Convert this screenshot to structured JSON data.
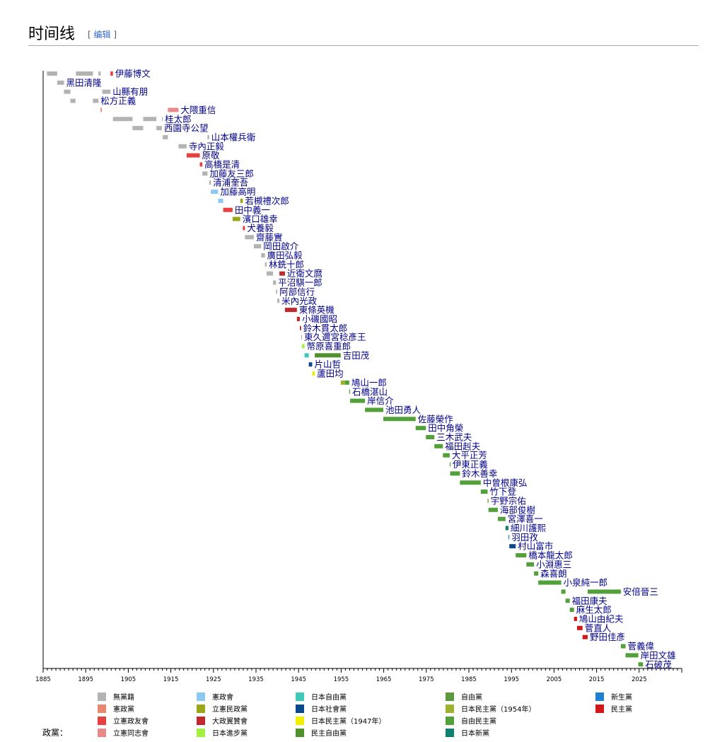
{
  "section": {
    "title": "时间线",
    "edit_open": "[",
    "edit_label": "编辑",
    "edit_close": "]"
  },
  "legend": {
    "title": "政黨："
  },
  "colors": {
    "無黨籍": "#b3b3b3",
    "憲政黨": "#e8886f",
    "立憲政友會": "#e64141",
    "立憲同志會": "#e88a8a",
    "憲政會": "#8cc8f0",
    "立憲民政黨": "#9aa51a",
    "大政翼贊會": "#c0282d",
    "日本進步黨": "#a4f040",
    "日本自由黨": "#40c8b8",
    "日本社會黨": "#0a4a8a",
    "日本民主黨（1947年）": "#f0f000",
    "民主自由黨": "#50902e",
    "自由黨": "#5a9a3a",
    "日本民主黨（1954年）": "#a0b030",
    "自由民主黨": "#52a03a",
    "日本新黨": "#108070",
    "新生黨": "#2080d0",
    "民主黨": "#d01818"
  },
  "chart_data": {
    "type": "timeline",
    "xlim": [
      1885,
      2035
    ],
    "x_ticks": [
      "1885",
      "1895",
      "1905",
      "1915",
      "1925",
      "1935",
      "1945",
      "1955",
      "1965",
      "1975",
      "1985",
      "1995",
      "2005",
      "2015",
      "2025"
    ],
    "legend_columns": [
      [
        "無黨籍",
        "憲政黨",
        "立憲政友會",
        "立憲同志會"
      ],
      [
        "憲政會",
        "立憲民政黨",
        "大政翼贊會",
        "日本進步黨"
      ],
      [
        "日本自由黨",
        "日本社會黨",
        "日本民主黨（1947年）",
        "民主自由黨"
      ],
      [
        "自由黨",
        "日本民主黨（1954年）",
        "自由民主黨",
        "日本新黨"
      ],
      [
        "新生黨",
        "民主黨"
      ]
    ],
    "rows": [
      {
        "name": "伊藤博文",
        "terms": [
          [
            1885.9,
            1888.3,
            "無黨籍"
          ],
          [
            1892.7,
            1896.7,
            "無黨籍"
          ],
          [
            1898.0,
            1898.5,
            "無黨籍"
          ],
          [
            1900.8,
            1901.4,
            "立憲政友會"
          ]
        ]
      },
      {
        "name": "黑田清隆",
        "terms": [
          [
            1888.3,
            1889.9,
            "無黨籍"
          ]
        ]
      },
      {
        "name": "山縣有朋",
        "terms": [
          [
            1889.9,
            1891.4,
            "無黨籍"
          ],
          [
            1898.9,
            1900.8,
            "無黨籍"
          ]
        ]
      },
      {
        "name": "松方正義",
        "terms": [
          [
            1891.4,
            1892.6,
            "無黨籍"
          ],
          [
            1896.7,
            1898.0,
            "無黨籍"
          ]
        ]
      },
      {
        "name": "大隈重信",
        "terms": [
          [
            1898.5,
            1898.8,
            "憲政黨"
          ],
          [
            1914.3,
            1916.8,
            "立憲同志會"
          ]
        ]
      },
      {
        "name": "桂太郎",
        "terms": [
          [
            1901.4,
            1906.0,
            "無黨籍"
          ],
          [
            1908.5,
            1911.6,
            "無黨籍"
          ],
          [
            1912.9,
            1913.1,
            "無黨籍"
          ]
        ]
      },
      {
        "name": "西園寺公望",
        "terms": [
          [
            1906.0,
            1908.5,
            "無黨籍"
          ],
          [
            1911.6,
            1912.9,
            "無黨籍"
          ]
        ]
      },
      {
        "name": "山本權兵衛",
        "terms": [
          [
            1913.1,
            1914.3,
            "無黨籍"
          ],
          [
            1923.6,
            1924.0,
            "無黨籍"
          ]
        ]
      },
      {
        "name": "寺內正毅",
        "terms": [
          [
            1916.8,
            1918.7,
            "無黨籍"
          ]
        ]
      },
      {
        "name": "原敬",
        "terms": [
          [
            1918.7,
            1921.8,
            "立憲政友會"
          ]
        ]
      },
      {
        "name": "高橋是清",
        "terms": [
          [
            1921.8,
            1922.4,
            "立憲政友會"
          ]
        ]
      },
      {
        "name": "加藤友三郎",
        "terms": [
          [
            1922.4,
            1923.6,
            "無黨籍"
          ]
        ]
      },
      {
        "name": "清浦奎吾",
        "terms": [
          [
            1924.0,
            1924.4,
            "無黨籍"
          ]
        ]
      },
      {
        "name": "加藤高明",
        "terms": [
          [
            1924.4,
            1926.1,
            "憲政會"
          ]
        ]
      },
      {
        "name": "若槻禮次郎",
        "terms": [
          [
            1926.1,
            1927.3,
            "憲政會"
          ],
          [
            1931.3,
            1931.9,
            "立憲民政黨"
          ]
        ]
      },
      {
        "name": "田中義一",
        "terms": [
          [
            1927.3,
            1929.5,
            "立憲政友會"
          ]
        ]
      },
      {
        "name": "濱口雄幸",
        "terms": [
          [
            1929.5,
            1931.3,
            "立憲民政黨"
          ]
        ]
      },
      {
        "name": "犬養毅",
        "terms": [
          [
            1931.9,
            1932.4,
            "立憲政友會"
          ]
        ]
      },
      {
        "name": "齋藤實",
        "terms": [
          [
            1932.4,
            1934.5,
            "無黨籍"
          ]
        ]
      },
      {
        "name": "岡田啟介",
        "terms": [
          [
            1934.5,
            1936.2,
            "無黨籍"
          ]
        ]
      },
      {
        "name": "廣田弘毅",
        "terms": [
          [
            1936.2,
            1937.1,
            "無黨籍"
          ]
        ]
      },
      {
        "name": "林銑十郎",
        "terms": [
          [
            1937.1,
            1937.5,
            "無黨籍"
          ]
        ]
      },
      {
        "name": "近衛文麿",
        "terms": [
          [
            1937.5,
            1939.0,
            "無黨籍"
          ],
          [
            1940.5,
            1941.8,
            "大政翼贊會"
          ]
        ]
      },
      {
        "name": "平沼騏一郎",
        "terms": [
          [
            1939.0,
            1939.7,
            "無黨籍"
          ]
        ]
      },
      {
        "name": "阿部信行",
        "terms": [
          [
            1939.7,
            1940.0,
            "無黨籍"
          ]
        ]
      },
      {
        "name": "米內光政",
        "terms": [
          [
            1940.0,
            1940.5,
            "無黨籍"
          ]
        ]
      },
      {
        "name": "東條英機",
        "terms": [
          [
            1941.8,
            1944.6,
            "大政翼贊會"
          ]
        ]
      },
      {
        "name": "小磯國昭",
        "terms": [
          [
            1944.6,
            1945.3,
            "大政翼贊會"
          ]
        ]
      },
      {
        "name": "鈴木貫太郎",
        "terms": [
          [
            1945.3,
            1945.6,
            "大政翼贊會"
          ]
        ]
      },
      {
        "name": "東久邇宮稔彥王",
        "terms": [
          [
            1945.6,
            1945.8,
            "無黨籍"
          ]
        ]
      },
      {
        "name": "幣原喜重郎",
        "terms": [
          [
            1945.8,
            1946.4,
            "日本進步黨"
          ]
        ]
      },
      {
        "name": "吉田茂",
        "terms": [
          [
            1946.4,
            1947.4,
            "日本自由黨"
          ],
          [
            1948.8,
            1954.9,
            "民主自由黨"
          ]
        ]
      },
      {
        "name": "片山哲",
        "terms": [
          [
            1947.4,
            1948.2,
            "日本社會黨"
          ]
        ]
      },
      {
        "name": "蘆田均",
        "terms": [
          [
            1948.2,
            1948.8,
            "日本民主黨（1947年）"
          ]
        ]
      },
      {
        "name": "鳩山一郎",
        "terms": [
          [
            1954.9,
            1955.9,
            "日本民主黨（1954年）"
          ],
          [
            1955.9,
            1956.9,
            "自由民主黨"
          ]
        ]
      },
      {
        "name": "石橋湛山",
        "terms": [
          [
            1956.9,
            1957.1,
            "自由民主黨"
          ]
        ]
      },
      {
        "name": "岸信介",
        "terms": [
          [
            1957.1,
            1960.6,
            "自由民主黨"
          ]
        ]
      },
      {
        "name": "池田勇人",
        "terms": [
          [
            1960.6,
            1964.9,
            "自由民主黨"
          ]
        ]
      },
      {
        "name": "佐藤榮作",
        "terms": [
          [
            1964.9,
            1972.5,
            "自由民主黨"
          ]
        ]
      },
      {
        "name": "田中角榮",
        "terms": [
          [
            1972.5,
            1974.9,
            "自由民主黨"
          ]
        ]
      },
      {
        "name": "三木武夫",
        "terms": [
          [
            1974.9,
            1976.9,
            "自由民主黨"
          ]
        ]
      },
      {
        "name": "福田赳夫",
        "terms": [
          [
            1976.9,
            1978.9,
            "自由民主黨"
          ]
        ]
      },
      {
        "name": "大平正芳",
        "terms": [
          [
            1978.9,
            1980.5,
            "自由民主黨"
          ]
        ]
      },
      {
        "name": "伊東正義",
        "terms": [
          [
            1980.5,
            1980.6,
            "自由民主黨"
          ]
        ]
      },
      {
        "name": "鈴木善幸",
        "terms": [
          [
            1980.6,
            1982.9,
            "自由民主黨"
          ]
        ]
      },
      {
        "name": "中曾根康弘",
        "terms": [
          [
            1982.9,
            1987.8,
            "自由民主黨"
          ]
        ]
      },
      {
        "name": "竹下登",
        "terms": [
          [
            1987.8,
            1989.4,
            "自由民主黨"
          ]
        ]
      },
      {
        "name": "宇野宗佑",
        "terms": [
          [
            1989.4,
            1989.6,
            "自由民主黨"
          ]
        ]
      },
      {
        "name": "海部俊樹",
        "terms": [
          [
            1989.6,
            1991.8,
            "自由民主黨"
          ]
        ]
      },
      {
        "name": "宮澤喜一",
        "terms": [
          [
            1991.8,
            1993.6,
            "自由民主黨"
          ]
        ]
      },
      {
        "name": "細川護熙",
        "terms": [
          [
            1993.6,
            1994.3,
            "日本新黨"
          ]
        ]
      },
      {
        "name": "羽田孜",
        "terms": [
          [
            1994.3,
            1994.5,
            "新生黨"
          ]
        ]
      },
      {
        "name": "村山富市",
        "terms": [
          [
            1994.5,
            1996.0,
            "日本社會黨"
          ]
        ]
      },
      {
        "name": "橋本龍太郎",
        "terms": [
          [
            1996.0,
            1998.5,
            "自由民主黨"
          ]
        ]
      },
      {
        "name": "小淵惠三",
        "terms": [
          [
            1998.5,
            2000.3,
            "自由民主黨"
          ]
        ]
      },
      {
        "name": "森喜朗",
        "terms": [
          [
            2000.3,
            2001.3,
            "自由民主黨"
          ]
        ]
      },
      {
        "name": "小泉純一郎",
        "terms": [
          [
            2001.3,
            2006.7,
            "自由民主黨"
          ]
        ]
      },
      {
        "name": "安倍晉三",
        "terms": [
          [
            2006.7,
            2007.7,
            "自由民主黨"
          ],
          [
            2012.9,
            2020.7,
            "自由民主黨"
          ]
        ]
      },
      {
        "name": "福田康夫",
        "terms": [
          [
            2007.7,
            2008.7,
            "自由民主黨"
          ]
        ]
      },
      {
        "name": "麻生太郎",
        "terms": [
          [
            2008.7,
            2009.7,
            "自由民主黨"
          ]
        ]
      },
      {
        "name": "鳩山由紀夫",
        "terms": [
          [
            2009.7,
            2010.4,
            "民主黨"
          ]
        ]
      },
      {
        "name": "菅直人",
        "terms": [
          [
            2010.4,
            2011.7,
            "民主黨"
          ]
        ]
      },
      {
        "name": "野田佳彥",
        "terms": [
          [
            2011.7,
            2012.9,
            "民主黨"
          ]
        ]
      },
      {
        "name": "菅義偉",
        "terms": [
          [
            2020.7,
            2021.8,
            "自由民主黨"
          ]
        ]
      },
      {
        "name": "岸田文雄",
        "terms": [
          [
            2021.8,
            2024.8,
            "自由民主黨"
          ]
        ]
      },
      {
        "name": "石破茂",
        "terms": [
          [
            2024.8,
            2025.9,
            "自由民主黨"
          ]
        ]
      }
    ]
  }
}
